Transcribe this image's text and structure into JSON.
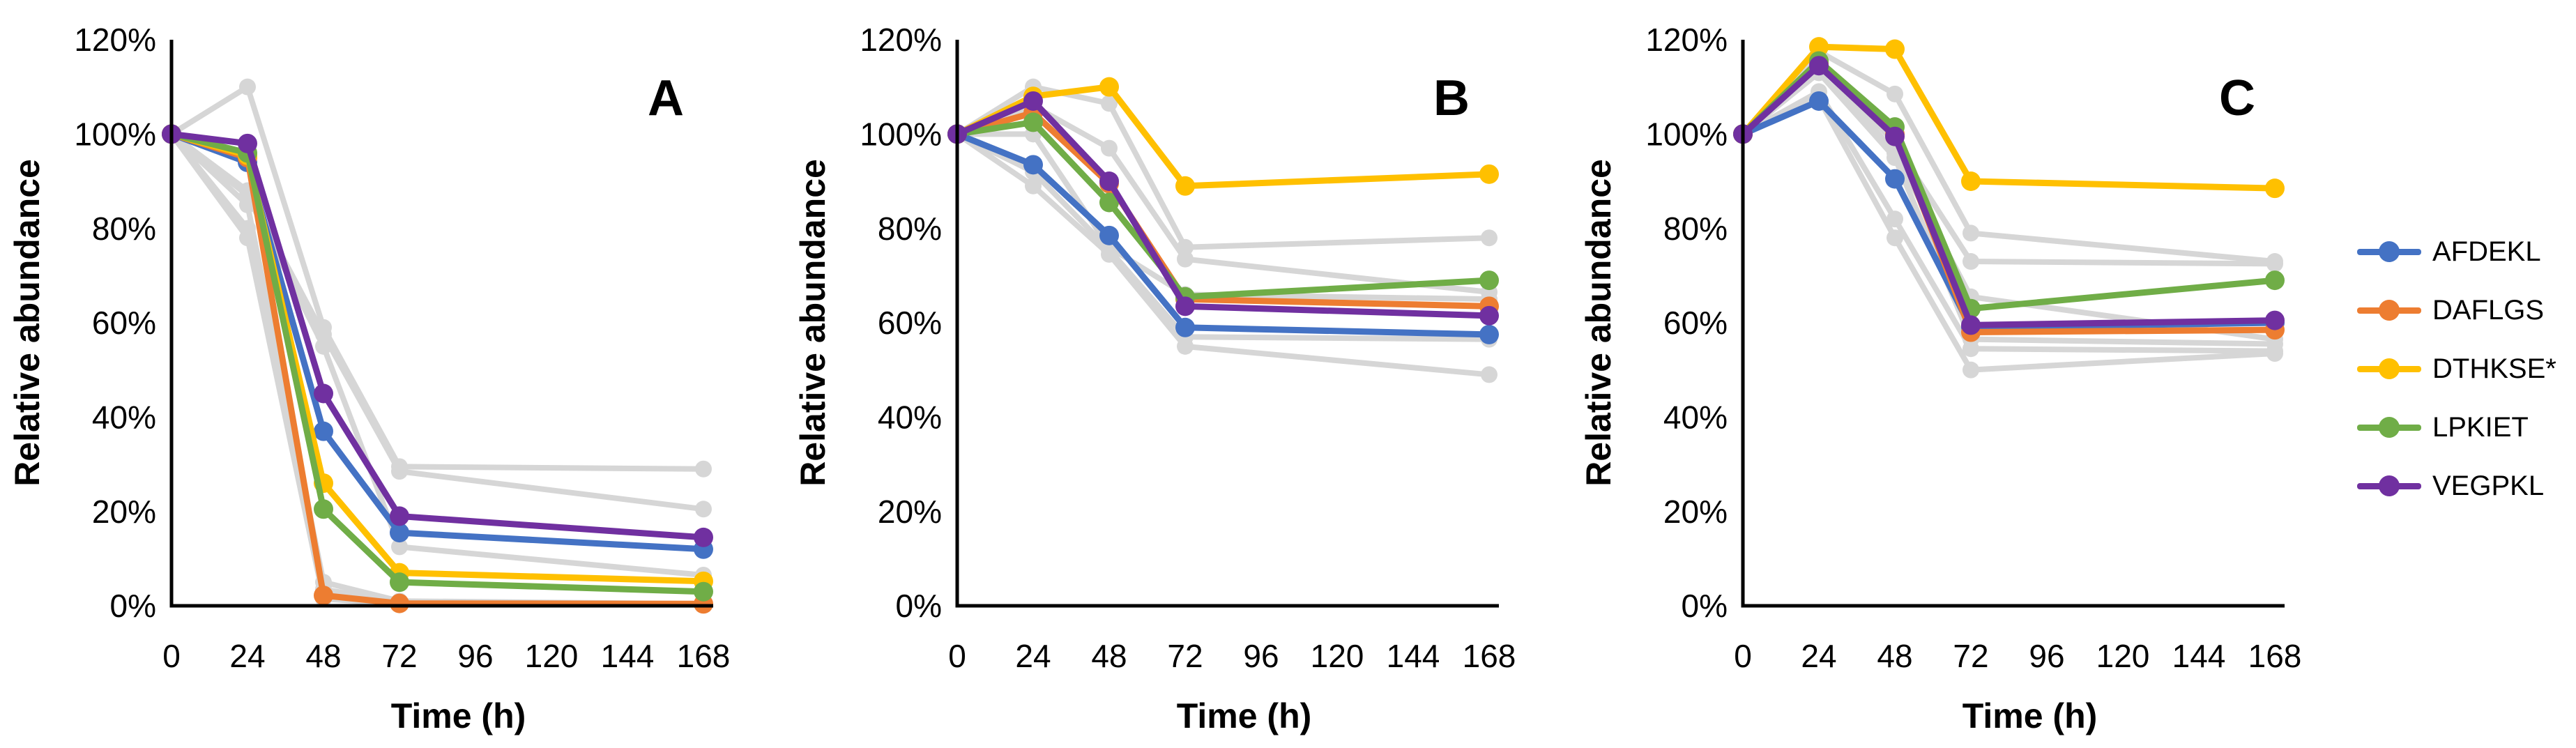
{
  "legend": {
    "entries": [
      {
        "label": "AFDEKL",
        "color": "#4472C4"
      },
      {
        "label": "DAFLGS",
        "color": "#ED7D31"
      },
      {
        "label": "DTHKSE*",
        "color": "#FFC000"
      },
      {
        "label": "LPKIET",
        "color": "#70AD47"
      },
      {
        "label": "VEGPKL",
        "color": "#7030A0"
      }
    ]
  },
  "style": {
    "gray_color": "#D6D6D6",
    "axis_color": "#000000",
    "background": "#FFFFFF"
  },
  "chart_data": [
    {
      "type": "line",
      "panel_label": "A",
      "xlabel": "Time (h)",
      "ylabel": "Relative abundance",
      "x": [
        0,
        24,
        48,
        72,
        168
      ],
      "x_ticks": [
        0,
        24,
        48,
        72,
        96,
        120,
        144,
        168
      ],
      "xlim": [
        0,
        168
      ],
      "ylim": [
        0,
        120
      ],
      "ytick_step": 20,
      "grid": false,
      "series": [
        {
          "name": "AFDEKL",
          "color": "#4472C4",
          "values": [
            100,
            94,
            37,
            15.5,
            12
          ]
        },
        {
          "name": "DAFLGS",
          "color": "#ED7D31",
          "values": [
            100,
            95,
            2.2,
            0.5,
            0.4
          ]
        },
        {
          "name": "DTHKSE*",
          "color": "#FFC000",
          "values": [
            100,
            95.5,
            26,
            7,
            5.2
          ]
        },
        {
          "name": "LPKIET",
          "color": "#70AD47",
          "values": [
            100,
            96,
            20.5,
            5,
            3
          ]
        },
        {
          "name": "VEGPKL",
          "color": "#7030A0",
          "values": [
            100,
            98,
            45,
            19,
            14.5
          ]
        }
      ],
      "replicates_gray": [
        [
          100,
          110,
          59,
          29.5,
          29
        ],
        [
          100,
          88,
          57.5,
          28.5,
          20.5
        ],
        [
          100,
          87,
          55,
          12.5,
          6.5
        ],
        [
          100,
          85,
          5,
          1,
          0.4
        ],
        [
          100,
          80,
          3.5,
          0.7,
          0.3
        ],
        [
          100,
          78,
          1.5,
          0.3,
          0.2
        ]
      ]
    },
    {
      "type": "line",
      "panel_label": "B",
      "xlabel": "Time (h)",
      "ylabel": "Relative abundance",
      "x": [
        0,
        24,
        48,
        72,
        168
      ],
      "x_ticks": [
        0,
        24,
        48,
        72,
        96,
        120,
        144,
        168
      ],
      "xlim": [
        0,
        168
      ],
      "ylim": [
        0,
        120
      ],
      "ytick_step": 20,
      "grid": false,
      "series": [
        {
          "name": "AFDEKL",
          "color": "#4472C4",
          "values": [
            100,
            93.5,
            78.5,
            59,
            57.5
          ]
        },
        {
          "name": "DAFLGS",
          "color": "#ED7D31",
          "values": [
            100,
            104.5,
            89.5,
            65,
            63.5
          ]
        },
        {
          "name": "DTHKSE*",
          "color": "#FFC000",
          "values": [
            100,
            108,
            110,
            89,
            91.5
          ]
        },
        {
          "name": "LPKIET",
          "color": "#70AD47",
          "values": [
            100,
            102.5,
            85.5,
            65.5,
            69
          ]
        },
        {
          "name": "VEGPKL",
          "color": "#7030A0",
          "values": [
            100,
            107,
            90,
            63.5,
            61.5
          ]
        }
      ],
      "replicates_gray": [
        [
          100,
          110,
          106.5,
          76,
          78
        ],
        [
          100,
          106,
          97,
          73.5,
          66.5
        ],
        [
          100,
          100,
          76,
          66,
          65
        ],
        [
          100,
          92,
          75.5,
          57,
          56.5
        ],
        [
          100,
          89,
          74.5,
          55,
          49
        ]
      ]
    },
    {
      "type": "line",
      "panel_label": "C",
      "xlabel": "Time (h)",
      "ylabel": "Relative abundance",
      "x": [
        0,
        24,
        48,
        72,
        168
      ],
      "x_ticks": [
        0,
        24,
        48,
        72,
        96,
        120,
        144,
        168
      ],
      "xlim": [
        0,
        168
      ],
      "ylim": [
        0,
        120
      ],
      "ytick_step": 20,
      "grid": false,
      "series": [
        {
          "name": "AFDEKL",
          "color": "#4472C4",
          "values": [
            100,
            107,
            90.5,
            59,
            60
          ]
        },
        {
          "name": "DAFLGS",
          "color": "#ED7D31",
          "values": [
            100,
            115,
            100,
            58,
            58.5
          ]
        },
        {
          "name": "DTHKSE*",
          "color": "#FFC000",
          "values": [
            100,
            118.5,
            118,
            90,
            88.5
          ]
        },
        {
          "name": "LPKIET",
          "color": "#70AD47",
          "values": [
            100,
            115.5,
            101.5,
            63,
            69
          ]
        },
        {
          "name": "VEGPKL",
          "color": "#7030A0",
          "values": [
            100,
            114.5,
            99.5,
            59.5,
            60.5
          ]
        }
      ],
      "replicates_gray": [
        [
          100,
          117.5,
          108.5,
          79,
          73
        ],
        [
          100,
          116,
          98,
          73,
          72.5
        ],
        [
          100,
          115,
          96,
          65.5,
          56.5
        ],
        [
          100,
          113,
          95,
          56.5,
          55.5
        ],
        [
          100,
          109,
          82,
          54.5,
          54
        ],
        [
          100,
          107.5,
          78,
          50,
          53.5
        ]
      ]
    }
  ]
}
